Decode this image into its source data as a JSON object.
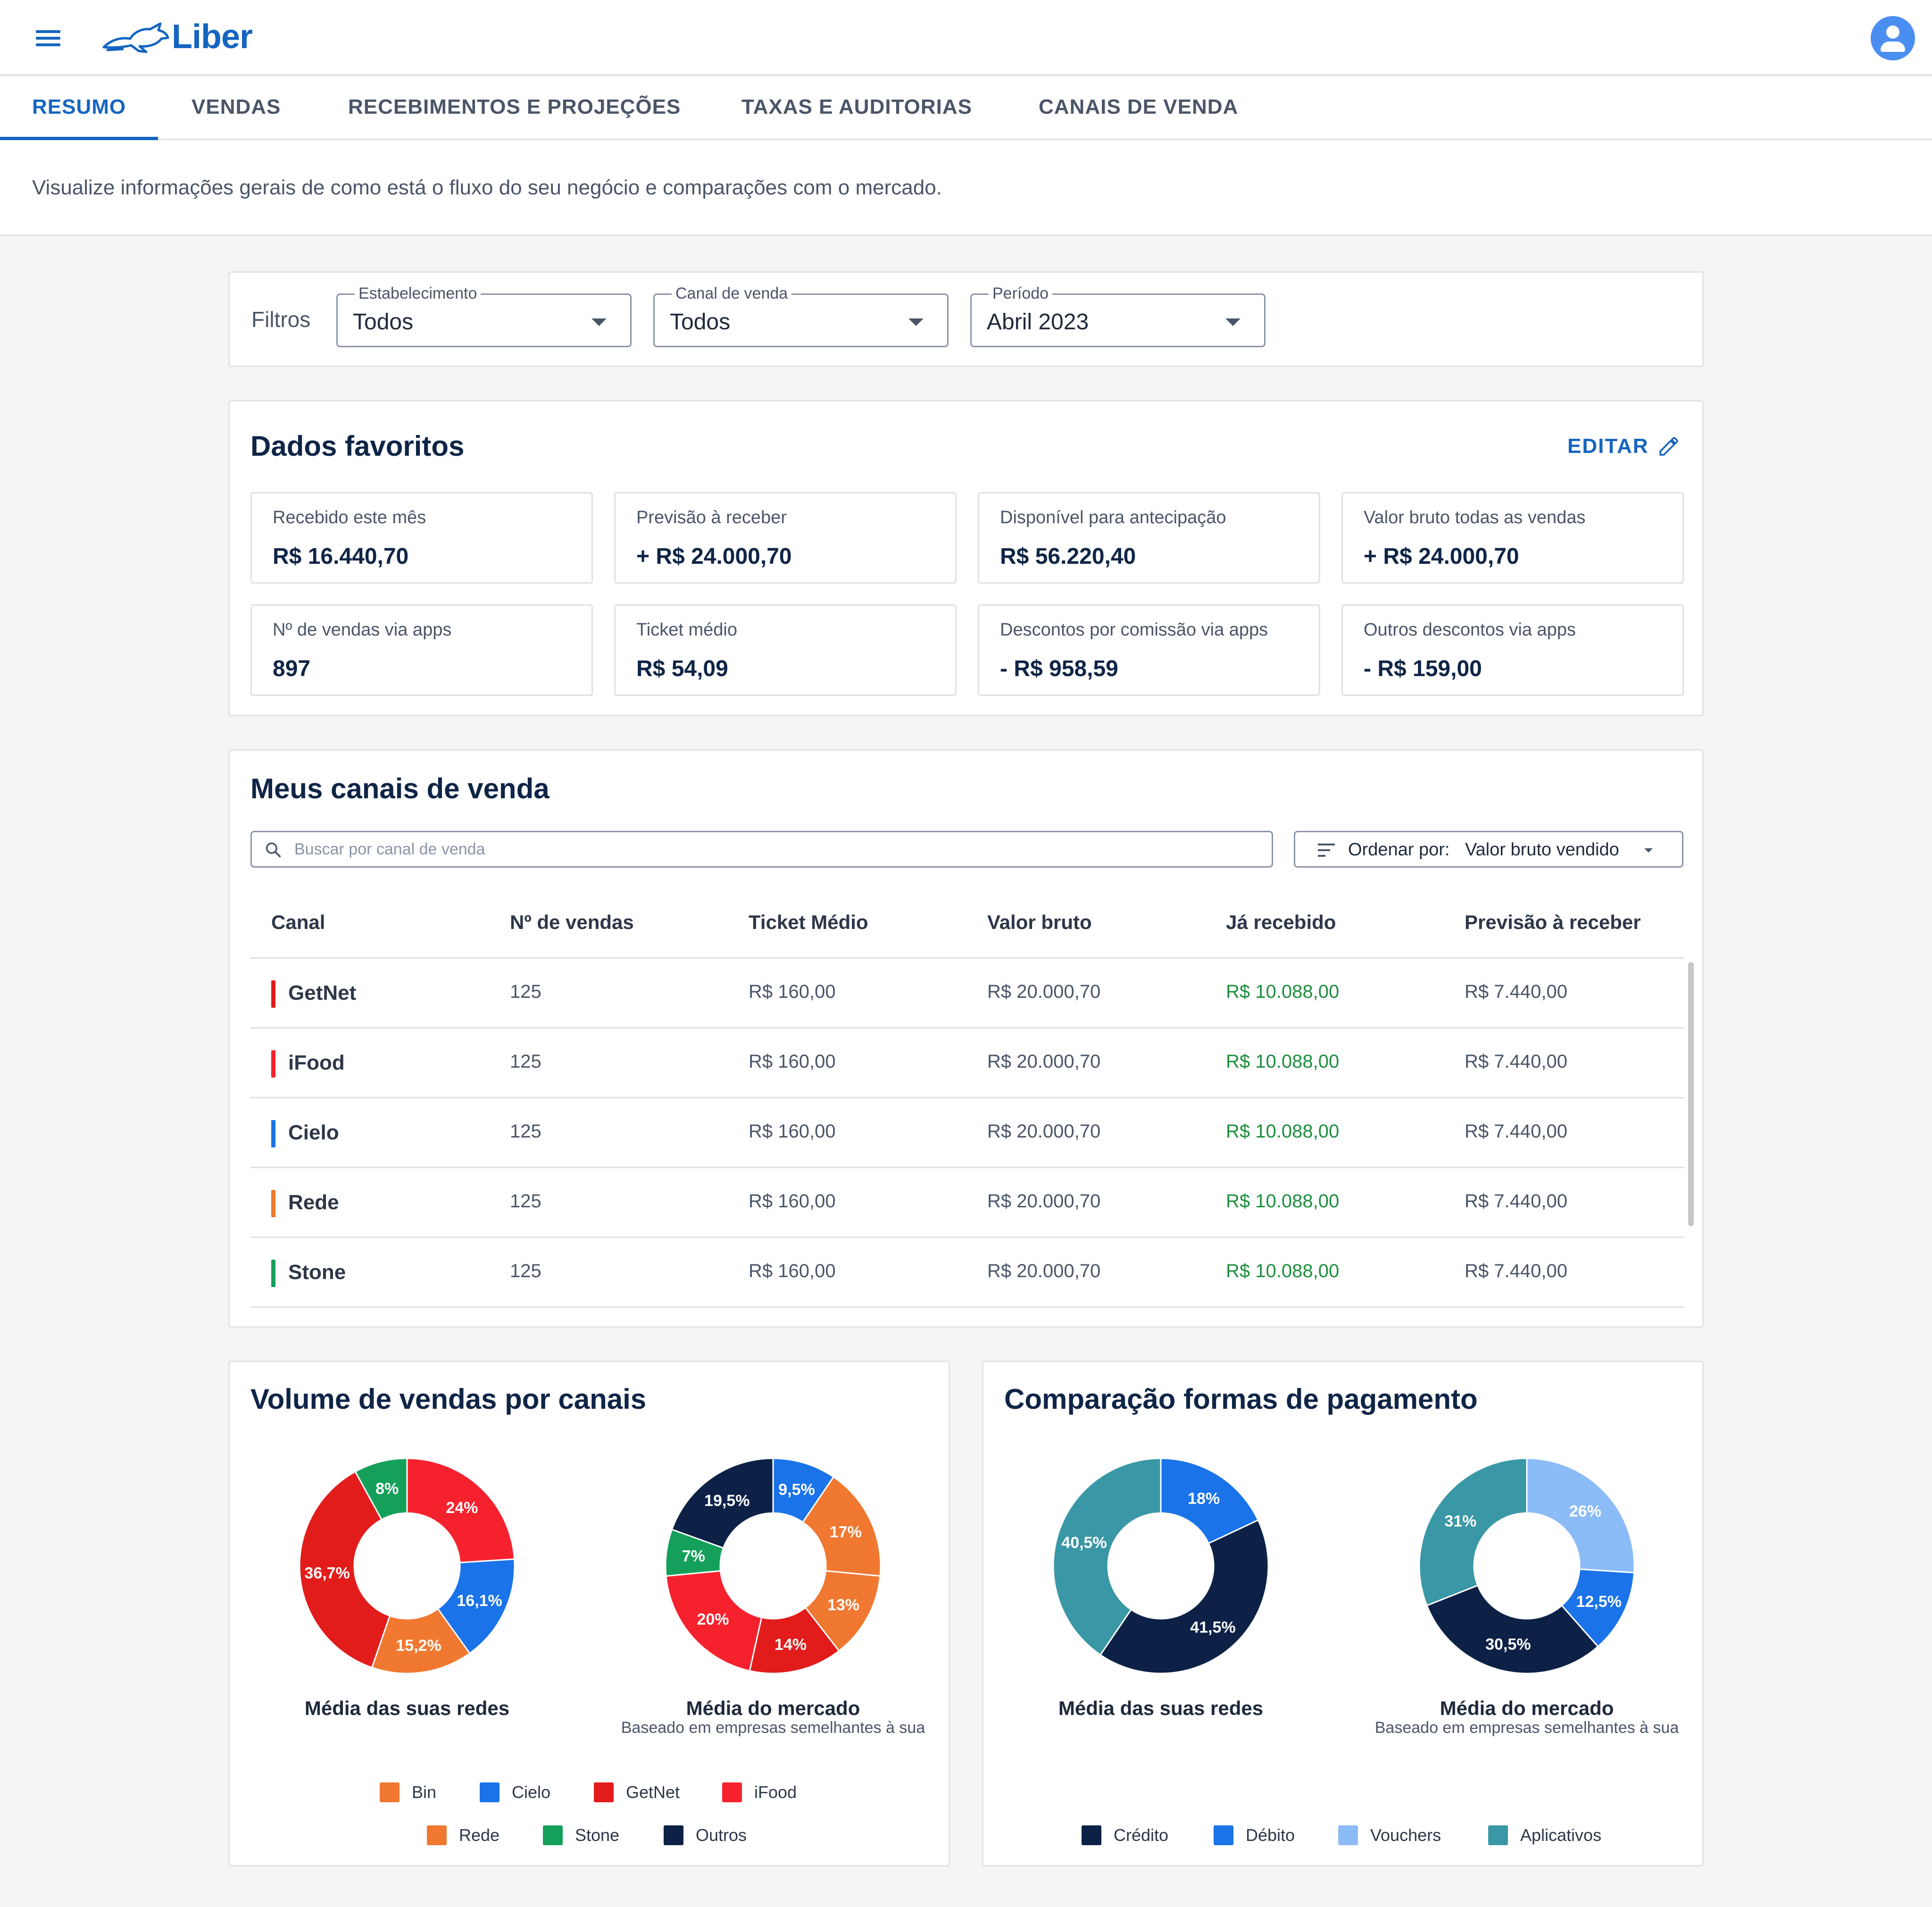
{
  "app": {
    "brand": "Liber"
  },
  "tabs": [
    {
      "label": "RESUMO"
    },
    {
      "label": "VENDAS"
    },
    {
      "label": "RECEBIMENTOS E PROJEÇÕES"
    },
    {
      "label": "TAXAS E AUDITORIAS"
    },
    {
      "label": "CANAIS DE VENDA"
    }
  ],
  "subtitle": "Visualize informações gerais de como está o fluxo do seu negócio e comparações com o mercado.",
  "filters": {
    "label": "Filtros",
    "items": [
      {
        "legend": "Estabelecimento",
        "value": "Todos"
      },
      {
        "legend": "Canal de venda",
        "value": "Todos"
      },
      {
        "legend": "Período",
        "value": "Abril 2023"
      }
    ]
  },
  "favorites": {
    "title": "Dados favoritos",
    "edit_label": "EDITAR",
    "stats": [
      {
        "label": "Recebido este mês",
        "value": "R$ 16.440,70"
      },
      {
        "label": "Previsão à receber",
        "value": "+ R$ 24.000,70"
      },
      {
        "label": "Disponível para antecipação",
        "value": "R$ 56.220,40"
      },
      {
        "label": "Valor bruto todas as vendas",
        "value": "+ R$ 24.000,70"
      },
      {
        "label": "Nº de vendas via apps",
        "value": "897"
      },
      {
        "label": "Ticket médio",
        "value": "R$ 54,09"
      },
      {
        "label": "Descontos por comissão via apps",
        "value": "- R$ 958,59"
      },
      {
        "label": "Outros descontos via apps",
        "value": "- R$ 159,00"
      }
    ]
  },
  "channels": {
    "title": "Meus canais de venda",
    "search_placeholder": "Buscar por canal de venda",
    "sort_label": "Ordenar por:",
    "sort_value": "Valor bruto vendido",
    "columns": [
      "Canal",
      "Nº de vendas",
      "Ticket Médio",
      "Valor bruto",
      "Já recebido",
      "Previsão à receber"
    ],
    "rows": [
      {
        "name": "GetNet",
        "color": "#e21b1b",
        "sales": "125",
        "ticket": "R$ 160,00",
        "gross": "R$ 20.000,70",
        "received": "R$ 10.088,00",
        "forecast": "R$ 7.440,00"
      },
      {
        "name": "iFood",
        "color": "#f5222d",
        "sales": "125",
        "ticket": "R$ 160,00",
        "gross": "R$ 20.000,70",
        "received": "R$ 10.088,00",
        "forecast": "R$ 7.440,00"
      },
      {
        "name": "Cielo",
        "color": "#1a73e8",
        "sales": "125",
        "ticket": "R$ 160,00",
        "gross": "R$ 20.000,70",
        "received": "R$ 10.088,00",
        "forecast": "R$ 7.440,00"
      },
      {
        "name": "Rede",
        "color": "#f07830",
        "sales": "125",
        "ticket": "R$ 160,00",
        "gross": "R$ 20.000,70",
        "received": "R$ 10.088,00",
        "forecast": "R$ 7.440,00"
      },
      {
        "name": "Stone",
        "color": "#14a05a",
        "sales": "125",
        "ticket": "R$ 160,00",
        "gross": "R$ 20.000,70",
        "received": "R$ 10.088,00",
        "forecast": "R$ 7.440,00"
      }
    ]
  },
  "charts": {
    "volume_title": "Volume de vendas por canais",
    "payment_title": "Comparação formas de pagamento",
    "own_label": "Média das suas redes",
    "market_label": "Média do mercado",
    "market_sub": "Baseado em empresas semelhantes à sua",
    "volume_legend": [
      {
        "name": "Bin",
        "color": "#f07830"
      },
      {
        "name": "Cielo",
        "color": "#1a73e8"
      },
      {
        "name": "GetNet",
        "color": "#e21b1b"
      },
      {
        "name": "iFood",
        "color": "#f5222d"
      },
      {
        "name": "Rede",
        "color": "#f07830"
      },
      {
        "name": "Stone",
        "color": "#14a05a"
      },
      {
        "name": "Outros",
        "color": "#0d2147"
      }
    ],
    "payment_legend": [
      {
        "name": "Crédito",
        "color": "#0d2147"
      },
      {
        "name": "Débito",
        "color": "#1a73e8"
      },
      {
        "name": "Vouchers",
        "color": "#8cbcf7"
      },
      {
        "name": "Aplicativos",
        "color": "#3a97a6"
      }
    ]
  },
  "chart_data": [
    {
      "type": "pie",
      "chart": "volume_own",
      "slices": [
        {
          "label": "24%",
          "value": 24,
          "color": "#f5222d"
        },
        {
          "label": "16,1%",
          "value": 16.1,
          "color": "#1a73e8"
        },
        {
          "label": "15,2%",
          "value": 15.2,
          "color": "#f07830"
        },
        {
          "label": "36,7%",
          "value": 36.7,
          "color": "#e21b1b"
        },
        {
          "label": "8%",
          "value": 8,
          "color": "#14a05a"
        }
      ]
    },
    {
      "type": "pie",
      "chart": "volume_market",
      "slices": [
        {
          "label": "9,5%",
          "value": 9.5,
          "color": "#1a73e8"
        },
        {
          "label": "17%",
          "value": 17,
          "color": "#f07830"
        },
        {
          "label": "13%",
          "value": 13,
          "color": "#f07830"
        },
        {
          "label": "14%",
          "value": 14,
          "color": "#e21b1b"
        },
        {
          "label": "20%",
          "value": 20,
          "color": "#f5222d"
        },
        {
          "label": "7%",
          "value": 7,
          "color": "#14a05a"
        },
        {
          "label": "19,5%",
          "value": 19.5,
          "color": "#0d2147"
        }
      ]
    },
    {
      "type": "pie",
      "chart": "payment_own",
      "slices": [
        {
          "label": "18%",
          "value": 18,
          "color": "#1a73e8"
        },
        {
          "label": "41,5%",
          "value": 41.5,
          "color": "#0d2147"
        },
        {
          "label": "40,5%",
          "value": 40.5,
          "color": "#3a97a6"
        }
      ]
    },
    {
      "type": "pie",
      "chart": "payment_market",
      "slices": [
        {
          "label": "26%",
          "value": 26,
          "color": "#8cbcf7"
        },
        {
          "label": "12,5%",
          "value": 12.5,
          "color": "#1a73e8"
        },
        {
          "label": "30,5%",
          "value": 30.5,
          "color": "#0d2147"
        },
        {
          "label": "31%",
          "value": 31,
          "color": "#3a97a6"
        }
      ]
    }
  ]
}
